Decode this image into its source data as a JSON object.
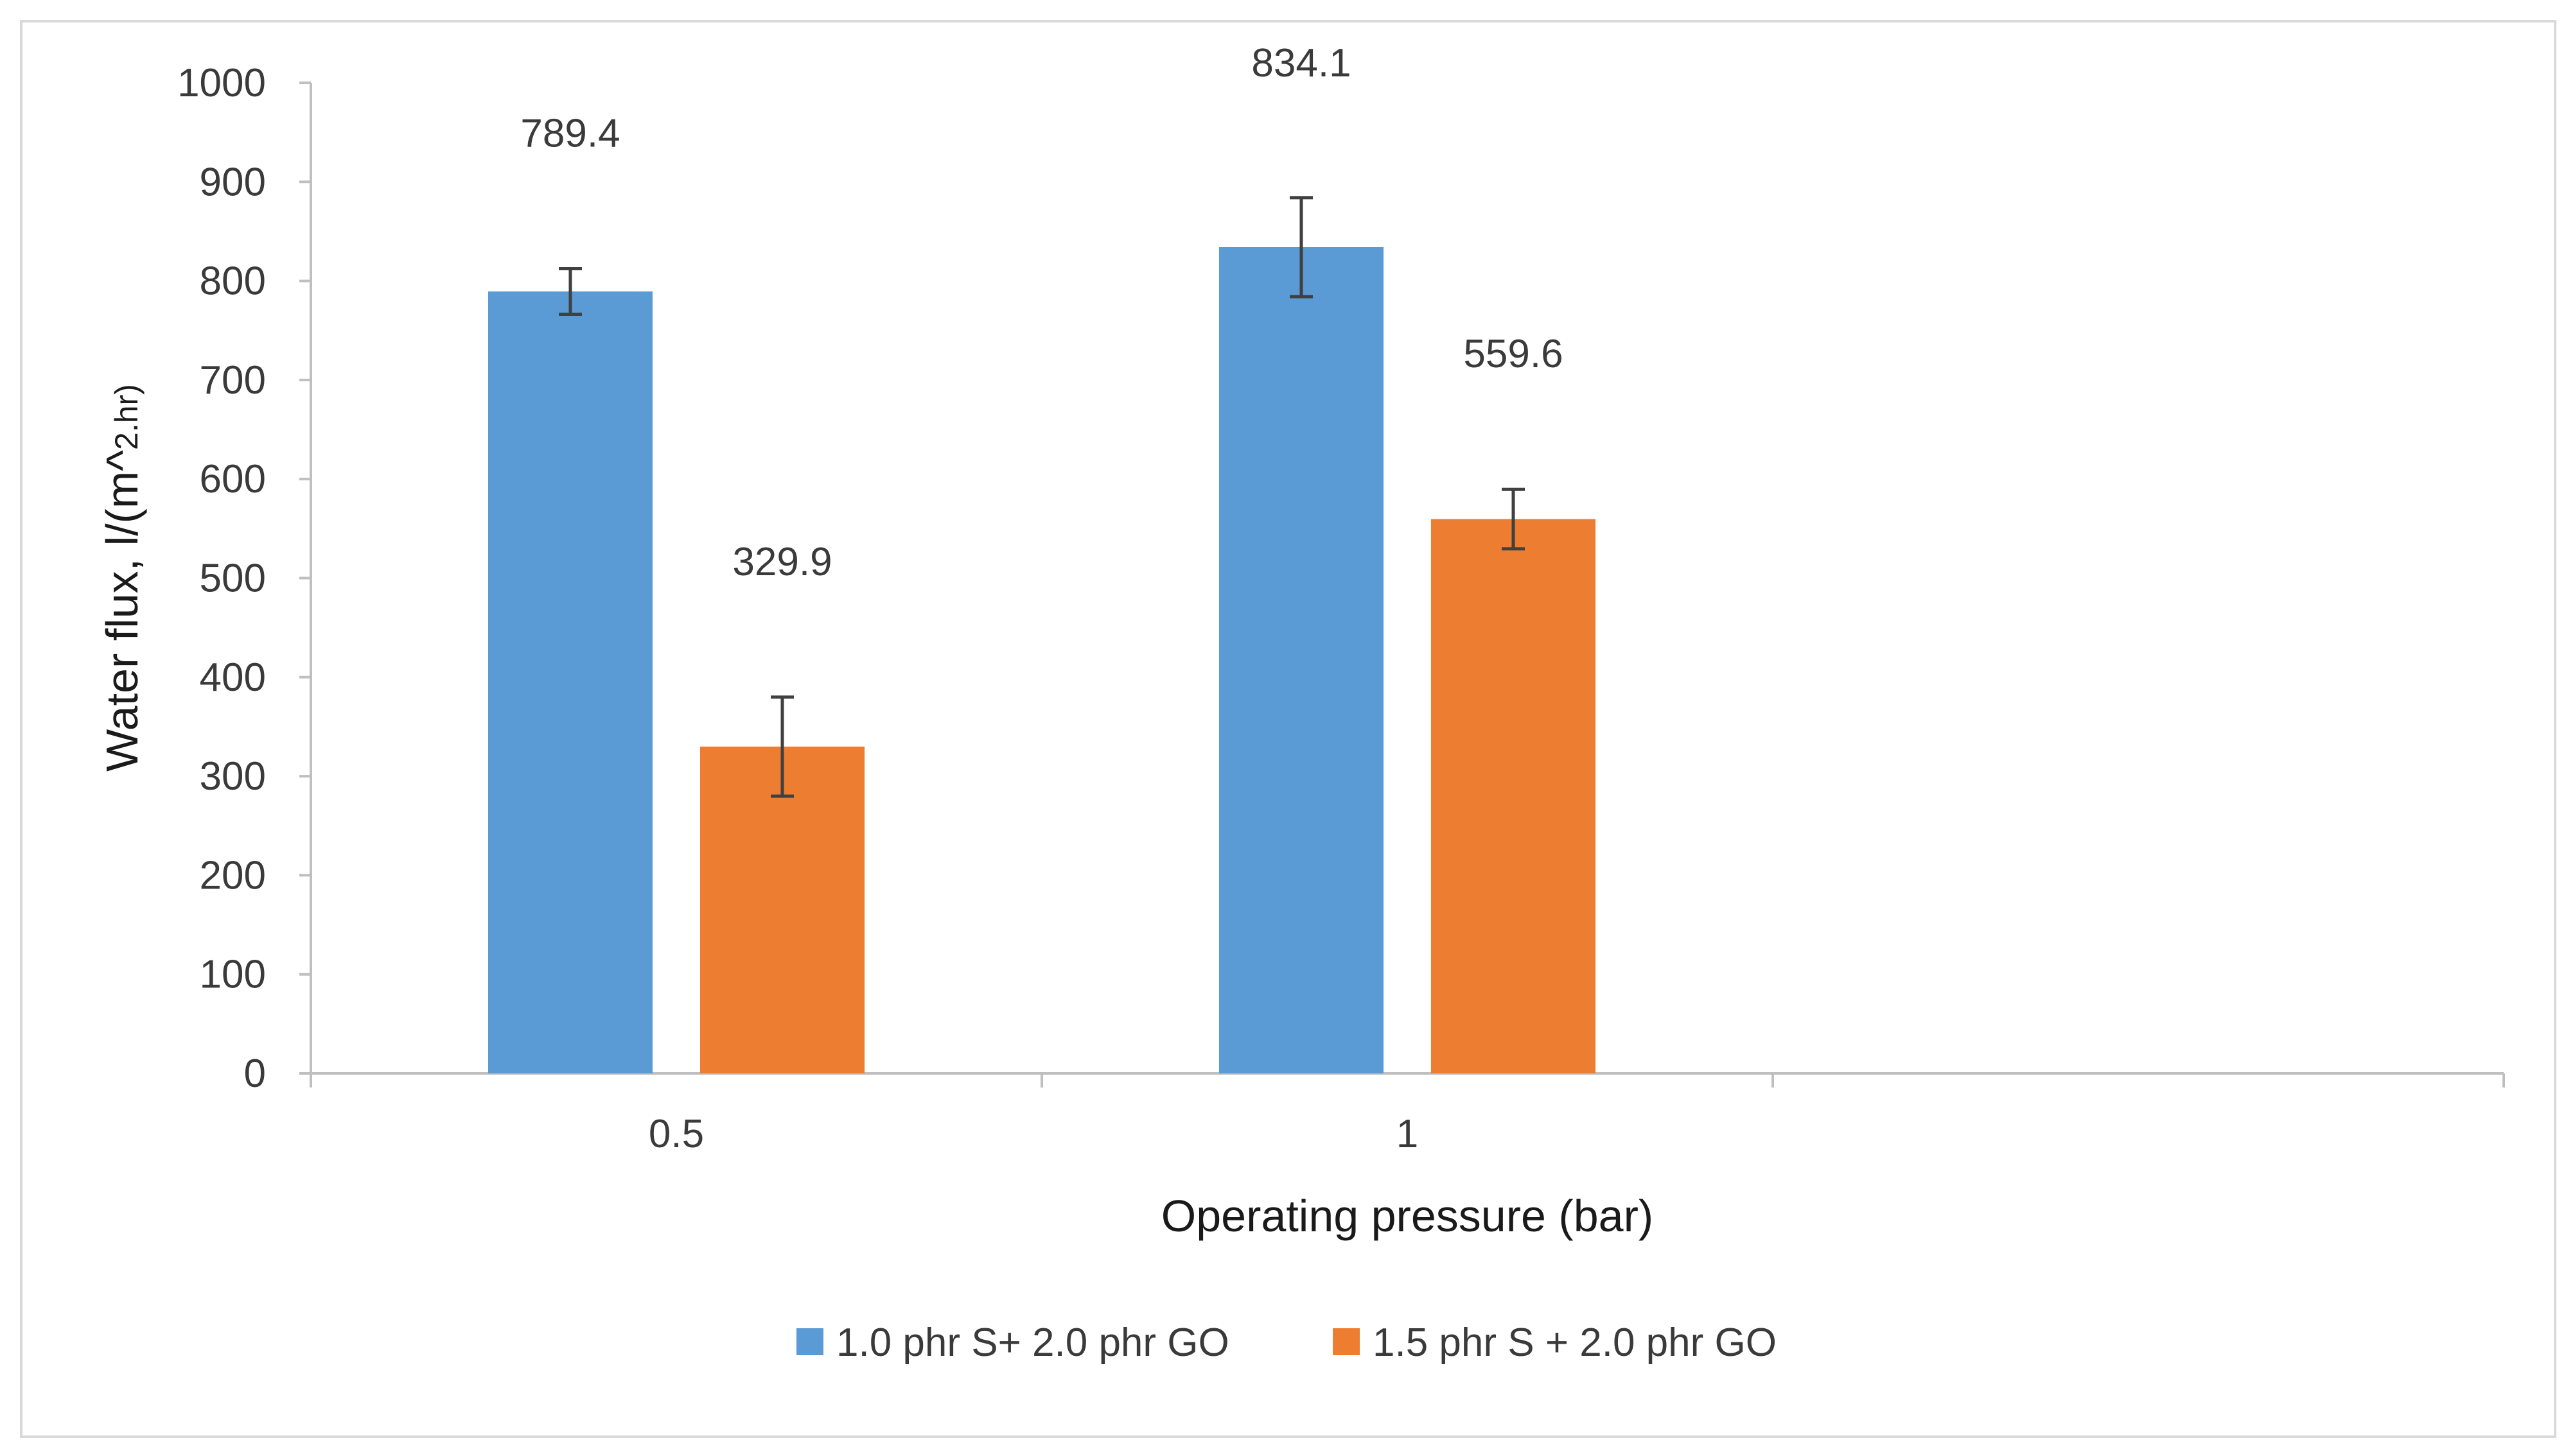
{
  "chart_data": {
    "type": "bar",
    "title": "",
    "xlabel": "Operating pressure (bar)",
    "ylabel_main": "Water flux, l/(m^",
    "ylabel_sub": "2.hr)",
    "categories": [
      "0.5",
      "1"
    ],
    "ylim": [
      0,
      1000
    ],
    "yticks": [
      "0",
      "100",
      "200",
      "300",
      "400",
      "500",
      "600",
      "700",
      "800",
      "900",
      "1000"
    ],
    "grid": false,
    "legend_position": "bottom",
    "series": [
      {
        "name": "1.0 phr S+ 2.0 phr GO",
        "color": "#5B9BD5",
        "values": [
          789.4,
          834.1
        ],
        "errors": [
          23,
          50
        ],
        "labels": [
          "789.4",
          "834.1"
        ]
      },
      {
        "name": "1.5 phr S + 2.0 phr GO",
        "color": "#ED7D31",
        "values": [
          329.9,
          559.6
        ],
        "errors": [
          50,
          30
        ],
        "labels": [
          "329.9",
          "559.6"
        ]
      }
    ]
  }
}
